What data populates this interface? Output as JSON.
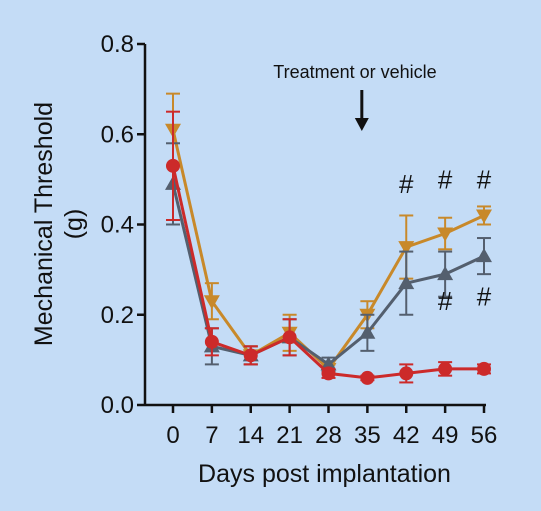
{
  "chart_data": {
    "type": "line",
    "xlabel": "Days post implantation",
    "ylabel": "Mechanical Threshold (g)",
    "x": [
      0,
      7,
      14,
      21,
      28,
      35,
      42,
      49,
      56
    ],
    "x_tick_labels": [
      "0",
      "7",
      "14",
      "21",
      "28",
      "35",
      "42",
      "49",
      "56"
    ],
    "y_tick_labels": [
      "0.0",
      "0.2",
      "0.4",
      "0.6",
      "0.8"
    ],
    "xlim": [
      0,
      56
    ],
    "ylim": [
      0,
      0.8
    ],
    "grid": false,
    "series": [
      {
        "color": "#c8892a",
        "marker": "triangle-down",
        "values": [
          0.61,
          0.23,
          0.11,
          0.16,
          0.08,
          0.2,
          0.35,
          0.38,
          0.42
        ],
        "errors": [
          0.08,
          0.04,
          0.02,
          0.04,
          0.01,
          0.03,
          0.07,
          0.035,
          0.02
        ]
      },
      {
        "color": "#545f6e",
        "marker": "triangle-up",
        "values": [
          0.49,
          0.13,
          0.11,
          0.15,
          0.09,
          0.16,
          0.27,
          0.29,
          0.33
        ],
        "errors": [
          0.09,
          0.04,
          0.02,
          0.04,
          0.015,
          0.04,
          0.07,
          0.05,
          0.04
        ]
      },
      {
        "color": "#cc2a2a",
        "marker": "circle",
        "values": [
          0.53,
          0.14,
          0.11,
          0.15,
          0.07,
          0.06,
          0.07,
          0.08,
          0.08
        ],
        "errors": [
          0.12,
          0.03,
          0.02,
          0.04,
          0.01,
          0.005,
          0.02,
          0.015,
          0.01
        ]
      }
    ],
    "annotations": [
      {
        "text": "Treatment or vehicle",
        "x": 34,
        "arrow": "down"
      },
      {
        "text": "#",
        "x": 42,
        "y": 0.47
      },
      {
        "text": "#",
        "x": 49,
        "y": 0.48
      },
      {
        "text": "#",
        "x": 56,
        "y": 0.48
      },
      {
        "text": "#",
        "x": 49,
        "y": 0.21
      },
      {
        "text": "#",
        "x": 56,
        "y": 0.22
      }
    ]
  }
}
